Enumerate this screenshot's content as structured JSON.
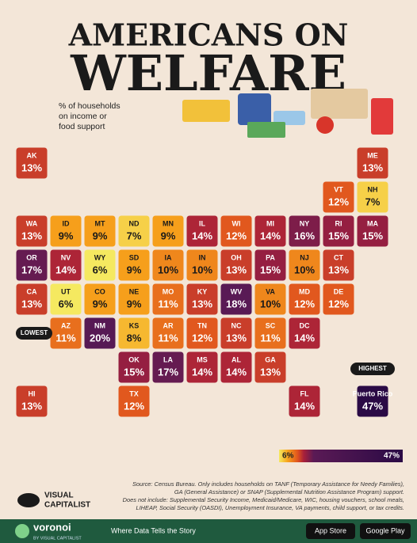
{
  "title": [
    "AMERICANS ON",
    "WELFARE"
  ],
  "subtitle": [
    "% of households",
    "on income or",
    "food support"
  ],
  "regions": [
    {
      "name": "AK",
      "value": 13,
      "value_label": "13%"
    },
    {
      "name": "ME",
      "value": 13,
      "value_label": "13%"
    },
    {
      "name": "VT",
      "value": 12,
      "value_label": "12%"
    },
    {
      "name": "NH",
      "value": 7,
      "value_label": "7%"
    },
    {
      "name": "WA",
      "value": 13,
      "value_label": "13%"
    },
    {
      "name": "ID",
      "value": 9,
      "value_label": "9%"
    },
    {
      "name": "MT",
      "value": 9,
      "value_label": "9%"
    },
    {
      "name": "ND",
      "value": 7,
      "value_label": "7%"
    },
    {
      "name": "MN",
      "value": 9,
      "value_label": "9%"
    },
    {
      "name": "IL",
      "value": 14,
      "value_label": "14%"
    },
    {
      "name": "WI",
      "value": 12,
      "value_label": "12%"
    },
    {
      "name": "MI",
      "value": 14,
      "value_label": "14%"
    },
    {
      "name": "NY",
      "value": 16,
      "value_label": "16%"
    },
    {
      "name": "RI",
      "value": 15,
      "value_label": "15%"
    },
    {
      "name": "MA",
      "value": 15,
      "value_label": "15%"
    },
    {
      "name": "OR",
      "value": 17,
      "value_label": "17%"
    },
    {
      "name": "NV",
      "value": 14,
      "value_label": "14%"
    },
    {
      "name": "WY",
      "value": 6,
      "value_label": "6%"
    },
    {
      "name": "SD",
      "value": 9,
      "value_label": "9%"
    },
    {
      "name": "IA",
      "value": 10,
      "value_label": "10%"
    },
    {
      "name": "IN",
      "value": 10,
      "value_label": "10%"
    },
    {
      "name": "OH",
      "value": 13,
      "value_label": "13%"
    },
    {
      "name": "PA",
      "value": 15,
      "value_label": "15%"
    },
    {
      "name": "NJ",
      "value": 10,
      "value_label": "10%"
    },
    {
      "name": "CT",
      "value": 13,
      "value_label": "13%"
    },
    {
      "name": "CA",
      "value": 13,
      "value_label": "13%"
    },
    {
      "name": "UT",
      "value": 6,
      "value_label": "6%"
    },
    {
      "name": "CO",
      "value": 9,
      "value_label": "9%"
    },
    {
      "name": "NE",
      "value": 9,
      "value_label": "9%"
    },
    {
      "name": "MO",
      "value": 11,
      "value_label": "11%"
    },
    {
      "name": "KY",
      "value": 13,
      "value_label": "13%"
    },
    {
      "name": "WV",
      "value": 18,
      "value_label": "18%"
    },
    {
      "name": "VA",
      "value": 10,
      "value_label": "10%"
    },
    {
      "name": "MD",
      "value": 12,
      "value_label": "12%"
    },
    {
      "name": "DE",
      "value": 12,
      "value_label": "12%"
    },
    {
      "name": "AZ",
      "value": 11,
      "value_label": "11%"
    },
    {
      "name": "NM",
      "value": 20,
      "value_label": "20%"
    },
    {
      "name": "KS",
      "value": 8,
      "value_label": "8%"
    },
    {
      "name": "AR",
      "value": 11,
      "value_label": "11%"
    },
    {
      "name": "TN",
      "value": 12,
      "value_label": "12%"
    },
    {
      "name": "NC",
      "value": 13,
      "value_label": "13%"
    },
    {
      "name": "SC",
      "value": 11,
      "value_label": "11%"
    },
    {
      "name": "DC",
      "value": 14,
      "value_label": "14%"
    },
    {
      "name": "OK",
      "value": 15,
      "value_label": "15%"
    },
    {
      "name": "LA",
      "value": 17,
      "value_label": "17%"
    },
    {
      "name": "MS",
      "value": 14,
      "value_label": "14%"
    },
    {
      "name": "AL",
      "value": 14,
      "value_label": "14%"
    },
    {
      "name": "GA",
      "value": 13,
      "value_label": "13%"
    },
    {
      "name": "HI",
      "value": 13,
      "value_label": "13%"
    },
    {
      "name": "TX",
      "value": 12,
      "value_label": "12%"
    },
    {
      "name": "FL",
      "value": 14,
      "value_label": "14%"
    },
    {
      "name": "Puerto Rico",
      "value": 47,
      "value_label": "47%"
    }
  ],
  "callouts": {
    "lowest": "LOWEST",
    "highest": "HIGHEST"
  },
  "legend": {
    "min": 6,
    "max": 47,
    "min_label": "6%",
    "max_label": "47%"
  },
  "source": [
    "Source: Census Bureau. Only includes households on TANF (Temporary Assistance for Needy Families),",
    "GA (General Assistance) or SNAP (Supplemental Nutrition Assistance Program) support.",
    "Does not include: Supplemental Security Income, Medicaid/Medicare, WIC, housing vouchers, school meals,",
    "LIHEAP, Social Security (OASDI), Unemployment Insurance, VA payments, child support, or tax credits."
  ],
  "brand": [
    "VISUAL",
    "CAPITALIST"
  ],
  "footer": {
    "logo": "voronoi",
    "byline": "BY VISUAL CAPITALIST",
    "tagline": "Where Data Tells the Story",
    "app_store": "App Store",
    "google_play": "Google Play"
  }
}
